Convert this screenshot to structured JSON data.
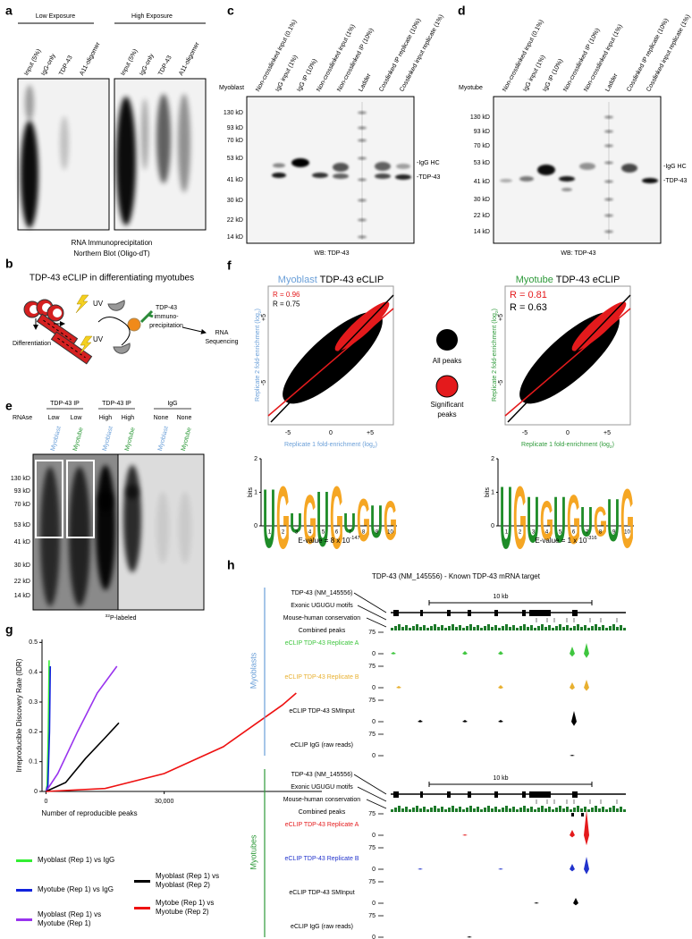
{
  "panels": {
    "a": {
      "label": "a",
      "exposures": [
        "Low Exposure",
        "High Exposure"
      ],
      "lanes": [
        "Input (5%)",
        "IgG-only",
        "TDP-43",
        "A11-oligomer"
      ],
      "caption": [
        "RNA Immunoprecipitation",
        "Northern Blot (Oligo-dT)"
      ]
    },
    "b": {
      "label": "b",
      "title": "TDP-43 eCLIP in differentiating myotubes",
      "uv": "UV",
      "differentiation": "Differentiation",
      "ip": [
        "TDP-43",
        "immuno-",
        "precipitation"
      ],
      "seq": [
        "RNA",
        "Sequencing"
      ]
    },
    "c": {
      "label": "c",
      "cell": "Myoblast",
      "lanes": [
        "Non-crosslinked input (0.1%)",
        "IgG input (1%)",
        "IgG IP (10%)",
        "Non-crosslinked input (1%)",
        "Non-crosslinked IP (10%)",
        "Ladder",
        "Cosslinked IP replicate (10%)",
        "Cosslinked input replicate (1%)"
      ],
      "markers": [
        "130 kD",
        "93 kD",
        "70 kD",
        "53 kD",
        "41 kD",
        "30 kD",
        "22 kD",
        "14 kD"
      ],
      "bands": [
        "-IgG HC",
        "-TDP-43"
      ],
      "caption": "WB: TDP-43"
    },
    "d": {
      "label": "d",
      "cell": "Myotube",
      "lanes": [
        "Non-crosslinked input (0.1%)",
        "IgG input (1%)",
        "IgG IP (10%)",
        "Non-crosslinked IP (10%)",
        "Non-crosslinked input (1%)",
        "Ladder",
        "Cosslinked IP replicate (10%)",
        "Cosslinked input replicate (1%)"
      ],
      "markers": [
        "130 kD",
        "93 kD",
        "70 kD",
        "53 kD",
        "41 kD",
        "30 kD",
        "22 kD",
        "14 kD"
      ],
      "bands": [
        "-IgG HC",
        "-TDP-43"
      ],
      "caption": "WB: TDP-43"
    },
    "e": {
      "label": "e",
      "rnase": "RNAse",
      "groups": [
        {
          "title": "TDP-43 IP",
          "conditions": [
            "Low",
            "Low"
          ]
        },
        {
          "title": "TDP-43 IP",
          "conditions": [
            "High",
            "High"
          ]
        },
        {
          "title": "IgG",
          "conditions": [
            "None",
            "None"
          ]
        }
      ],
      "lanes": [
        "Myoblast",
        "Myotube"
      ],
      "markers": [
        "130 kD",
        "93 kD",
        "70 kD",
        "53 kD",
        "41 kD",
        "30 kD",
        "22 kD",
        "14 kD"
      ],
      "caption": {
        "sup": "32",
        "text": "P-labeled"
      }
    },
    "f": {
      "label": "f",
      "plots": [
        {
          "cell": "Myoblast",
          "title": " TDP-43 eCLIP",
          "r_sig": "R = 0.96",
          "r_all": "R = 0.75",
          "xlabel": {
            "pre": "Replicate 1 fold-enrichment (log",
            "sub": "2",
            "post": ")"
          },
          "ylabel": {
            "pre": "Replicate 2 fold-enrichment (log",
            "sub": "2",
            "post": ")"
          },
          "ticks": [
            "-5",
            "0",
            "+5"
          ],
          "logo": {
            "letters": [
              "U",
              "G",
              "U",
              "G",
              "U",
              "G",
              "U",
              "G",
              "U",
              "G"
            ],
            "heights": [
              1.8,
              1.9,
              0.6,
              1.5,
              1.7,
              1.9,
              0.6,
              1.3,
              1.0,
              1.2
            ],
            "positions": [
              1,
              2,
              3,
              4,
              5,
              6,
              7,
              8,
              9,
              10
            ],
            "bits": "bits",
            "bit_ticks": [
              0,
              1,
              2
            ],
            "evalue": {
              "pre": "E-value = 8 x 10",
              "exp": "-147"
            }
          }
        },
        {
          "cell": "Myotube",
          "title": " TDP-43 eCLIP",
          "r_sig": "R = 0.81",
          "r_all": "R = 0.63",
          "xlabel": {
            "pre": "Replicate 1 fold-enrichment (log",
            "sub": "2",
            "post": ")"
          },
          "ylabel": {
            "pre": "Replicate 2 fold-enrichment (log",
            "sub": "2",
            "post": ")"
          },
          "ticks": [
            "-5",
            "0",
            "+5"
          ],
          "logo": {
            "letters": [
              "U",
              "G",
              "U",
              "G",
              "U",
              "G",
              "U",
              "G",
              "U",
              "G"
            ],
            "heights": [
              1.9,
              1.9,
              1.4,
              1.2,
              1.4,
              1.5,
              0.9,
              0.9,
              1.3,
              1.8
            ],
            "positions": [
              1,
              2,
              3,
              4,
              5,
              6,
              7,
              8,
              9,
              10
            ],
            "bits": "bits",
            "bit_ticks": [
              0,
              1,
              2
            ],
            "evalue": {
              "pre": "E-value = 1 x 10",
              "exp": "-316"
            }
          }
        }
      ],
      "legend": {
        "all": "All peaks",
        "significant": [
          "Significant",
          "peaks"
        ]
      }
    },
    "g": {
      "label": "g"
    },
    "h": {
      "label": "h",
      "title": "TDP-43 (NM_145556) - Known TDP-43 mRNA target",
      "blocks": [
        {
          "group": "Myoblasts",
          "color": "#6a9fd8",
          "gene": "TDP-43 (NM_145556)",
          "motifs": "Exonic UGUGU motifs",
          "conservation": "Mouse-human conservation",
          "combined": "Combined peaks",
          "scale": "10 kb",
          "tracks": [
            {
              "name": "eCLIP TDP-43 Replicate A",
              "color": "#3fc63f",
              "max": 75,
              "min": 0
            },
            {
              "name": "eCLIP TDP-43 Replicate B",
              "color": "#e8b030",
              "max": 75,
              "min": 0
            },
            {
              "name": "eCLIP TDP-43 SMInput",
              "color": "#000000",
              "max": 75,
              "min": 0
            },
            {
              "name": "eCLIP IgG (raw reads)",
              "color": "#000000",
              "max": 75,
              "min": 0
            }
          ]
        },
        {
          "group": "Myotubes",
          "color": "#2e9a3a",
          "gene": "TDP-43 (NM_145556)",
          "motifs": "Exonic UGUGU motifs",
          "conservation": "Mouse-human conservation",
          "combined": "Combined peaks",
          "scale": "10 kb",
          "tracks": [
            {
              "name": "eCLIP TDP-43 Replicate A",
              "color": "#e41a1c",
              "max": 75,
              "min": 0
            },
            {
              "name": "eCLIP TDP-43 Replicate B",
              "color": "#2233cc",
              "max": 75,
              "min": 0
            },
            {
              "name": "eCLIP TDP-43 SMInput",
              "color": "#000000",
              "max": 75,
              "min": 0
            },
            {
              "name": "eCLIP IgG (raw reads)",
              "color": "#000000",
              "max": 75,
              "min": 0
            }
          ]
        }
      ]
    }
  },
  "chart_data": {
    "type": "line",
    "ylabel": "Irreproducible Discovery Rate (IDR)",
    "xlabel": "Number of reproducible peaks",
    "xlim": [
      -1000,
      70000
    ],
    "ylim": [
      0,
      0.51
    ],
    "xticks": [
      0,
      {
        "value": 30000,
        "label": "30,000"
      }
    ],
    "yticks": [
      0,
      0.1,
      0.2,
      0.3,
      0.4,
      0.5
    ],
    "series": [
      {
        "name": "Myoblast (Rep 1) vs IgG",
        "color": "#33ee33",
        "x": [
          0,
          300,
          600,
          800
        ],
        "values": [
          0,
          0.02,
          0.2,
          0.44
        ]
      },
      {
        "name": "Myotube (Rep 1) vs IgG",
        "color": "#1122dd",
        "x": [
          0,
          500,
          900,
          1100
        ],
        "values": [
          0,
          0.02,
          0.2,
          0.42
        ]
      },
      {
        "name": "Myoblast (Rep 1) vs Myotube (Rep 1)",
        "color": "#9933ee",
        "x": [
          0,
          3000,
          8000,
          13000,
          18000
        ],
        "values": [
          0,
          0.06,
          0.2,
          0.33,
          0.42
        ]
      },
      {
        "name": "Myoblast (Rep 1) vs Myoblast (Rep 2)",
        "color": "#000000",
        "x": [
          0,
          5000,
          10000,
          15000,
          18500
        ],
        "values": [
          0,
          0.03,
          0.11,
          0.18,
          0.23
        ]
      },
      {
        "name": "Mytobe (Rep 1) vs Myotube (Rep 2)",
        "color": "#ee1111",
        "x": [
          0,
          15000,
          30000,
          45000,
          60000,
          63500
        ],
        "values": [
          0,
          0.01,
          0.06,
          0.15,
          0.29,
          0.33
        ]
      }
    ]
  }
}
